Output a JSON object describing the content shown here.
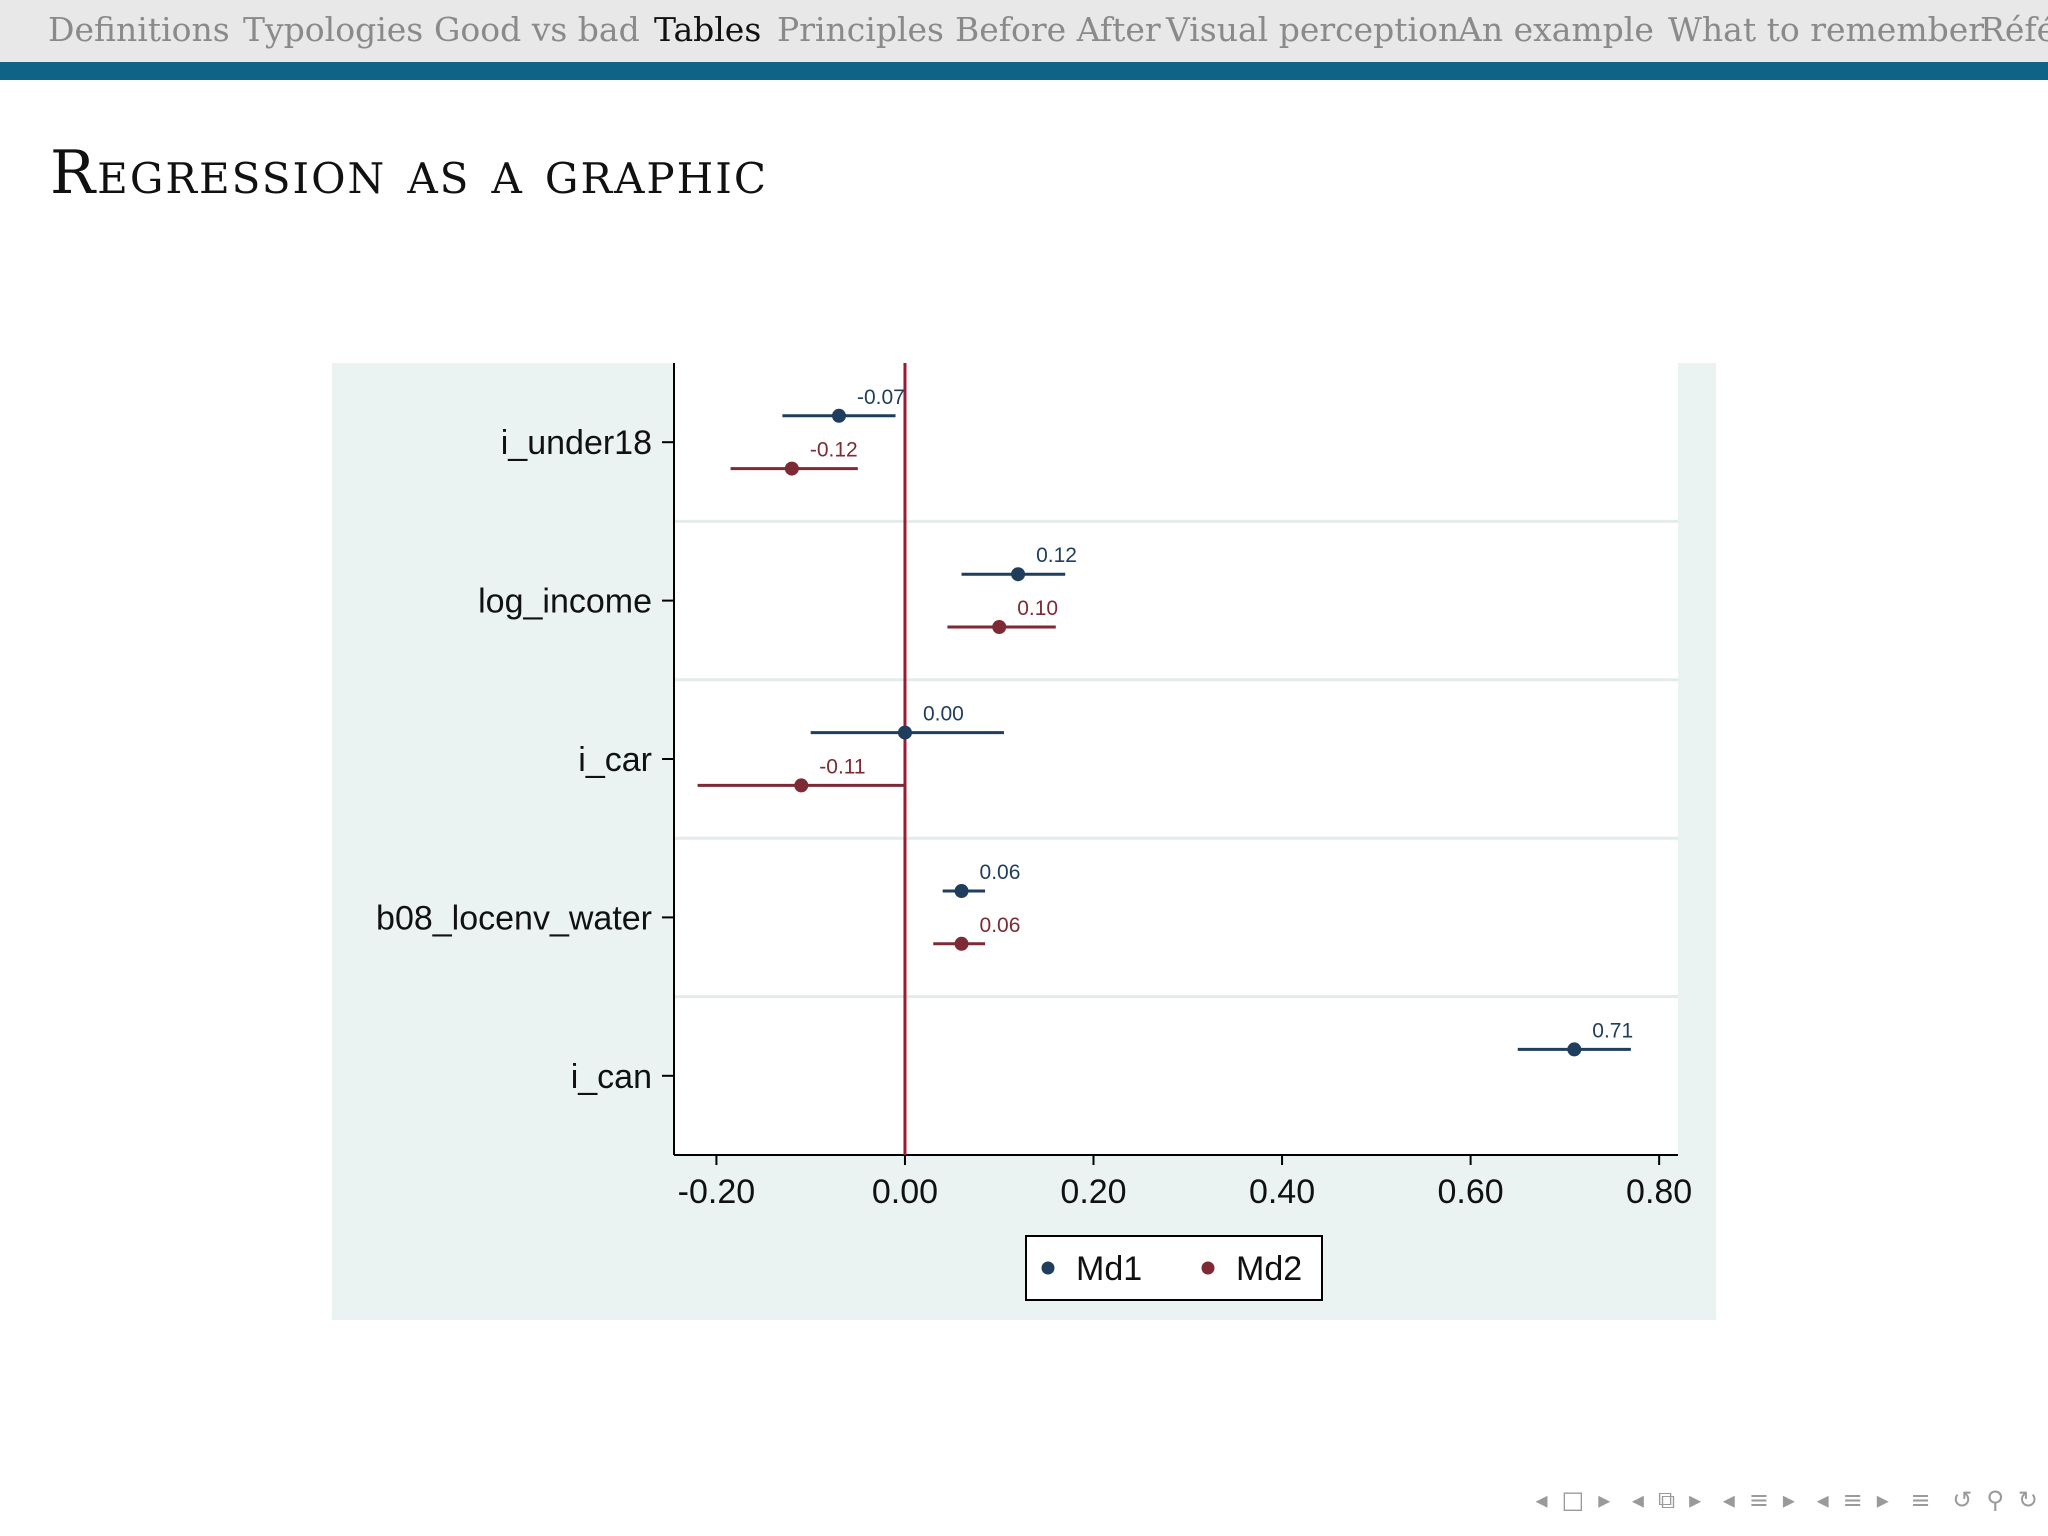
{
  "nav": {
    "items": [
      {
        "label": "Definitions",
        "active": false
      },
      {
        "label": "Typologies",
        "active": false
      },
      {
        "label": "Good vs bad",
        "active": false
      },
      {
        "label": "Tables",
        "active": true
      },
      {
        "label": "Principles",
        "active": false
      },
      {
        "label": "Before After",
        "active": false
      },
      {
        "label": "Visual perception",
        "active": false
      },
      {
        "label": "An example",
        "active": false
      },
      {
        "label": "What to remember",
        "active": false
      },
      {
        "label": "Réfé",
        "active": false
      }
    ]
  },
  "slide": {
    "title": "Regression as a graphic"
  },
  "chart_data": {
    "type": "coefficient-plot",
    "title": "",
    "xlabel": "",
    "ylabel": "",
    "xlim": [
      -0.245,
      0.82
    ],
    "xticks": [
      -0.2,
      0.0,
      0.2,
      0.4,
      0.6,
      0.8
    ],
    "xtick_labels": [
      "-0.20",
      "0.00",
      "0.20",
      "0.40",
      "0.60",
      "0.80"
    ],
    "reference_line": 0,
    "reference_color": "#9b1b30",
    "categories": [
      "i_under18",
      "log_income",
      "i_car",
      "b08_locenv_water",
      "i_can"
    ],
    "series": [
      {
        "name": "Md1",
        "color": "#1f3d5c",
        "values": [
          -0.07,
          0.12,
          0.0,
          0.06,
          0.71
        ],
        "value_labels": [
          "-0.07",
          "0.12",
          "0.00",
          "0.06",
          "0.71"
        ],
        "ci_low": [
          -0.13,
          0.06,
          -0.1,
          0.04,
          0.65
        ],
        "ci_high": [
          -0.01,
          0.17,
          0.105,
          0.085,
          0.77
        ]
      },
      {
        "name": "Md2",
        "color": "#7d2a35",
        "values": [
          -0.12,
          0.1,
          -0.11,
          0.06,
          null
        ],
        "value_labels": [
          "-0.12",
          "0.10",
          "-0.11",
          "0.06",
          ""
        ],
        "ci_low": [
          -0.185,
          0.045,
          -0.22,
          0.03,
          null
        ],
        "ci_high": [
          -0.05,
          0.16,
          0.0,
          0.085,
          null
        ]
      }
    ],
    "legend": {
      "placement": "bottom"
    },
    "background_color": "#eaf2f2",
    "plot_color": "#ffffff",
    "grid": "horizontal"
  },
  "beamer_nav": {
    "icons": [
      "nav-left-icon",
      "frame-icon",
      "nav-right-icon",
      "nav-left-icon",
      "subsection-icon",
      "nav-right-icon",
      "nav-left-icon",
      "section-icon",
      "nav-right-icon",
      "nav-left-icon",
      "toc-icon",
      "nav-right-icon",
      "menu-icon",
      "undo-icon",
      "search-icon",
      "redo-icon"
    ]
  }
}
